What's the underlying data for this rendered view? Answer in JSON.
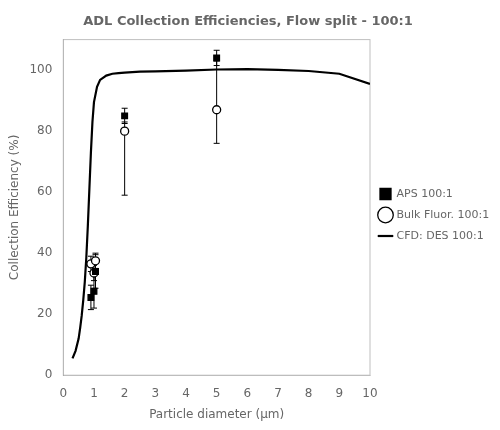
{
  "chart_data": {
    "type": "line",
    "title": "ADL Collection Efficiencies, Flow split - 100:1",
    "x_label": "Particle diameter (μm)",
    "y_label": "Collection Efficiency (%)",
    "xlim": [
      0,
      10
    ],
    "ylim": [
      0,
      110
    ],
    "xticks": [
      0,
      1,
      2,
      3,
      4,
      5,
      6,
      7,
      8,
      9,
      10
    ],
    "yticks": [
      0,
      20,
      40,
      60,
      80,
      100
    ],
    "grid": false,
    "legend": "right",
    "series": [
      {
        "name": "CFD: DES 100:1",
        "type": "line",
        "color": "#000000",
        "line_style": "solid",
        "x": [
          0.3,
          0.4,
          0.5,
          0.55,
          0.6,
          0.65,
          0.7,
          0.75,
          0.8,
          0.85,
          0.9,
          0.95,
          1.0,
          1.1,
          1.2,
          1.4,
          1.6,
          1.8,
          2.0,
          2.5,
          3.0,
          4.0,
          5.0,
          6.0,
          7.0,
          8.0,
          9.0,
          10.0
        ],
        "values": [
          5.5,
          8.0,
          12.0,
          15.5,
          19.5,
          24.5,
          30.5,
          38.5,
          49.0,
          61.0,
          73.0,
          83.0,
          89.5,
          94.5,
          96.8,
          98.2,
          98.8,
          99.0,
          99.2,
          99.5,
          99.6,
          99.8,
          100.2,
          100.3,
          100.1,
          99.7,
          98.8,
          95.5
        ]
      },
      {
        "name": "APS 100:1",
        "type": "scatter",
        "color": "#000000",
        "marker": "square",
        "x": [
          0.9,
          1.0,
          1.05,
          2.0,
          5.0
        ],
        "values": [
          25.5,
          27.5,
          34.0,
          85.0,
          104.0
        ],
        "error_low": [
          4.0,
          5.5,
          5.5,
          2.5,
          2.5
        ],
        "error_high": [
          4.0,
          5.5,
          5.5,
          2.5,
          2.5
        ]
      },
      {
        "name": "Bulk Fluor. 100:1",
        "type": "scatter",
        "color": "#000000",
        "marker": "open-circle",
        "x": [
          0.9,
          1.0,
          1.05,
          2.0,
          5.0
        ],
        "values": [
          36.5,
          33.5,
          37.5,
          80.0,
          87.0
        ],
        "error_low": [
          2.5,
          2.5,
          2.5,
          21.0,
          11.0
        ],
        "error_high": [
          2.5,
          2.5,
          2.5,
          3.0,
          16.0
        ]
      }
    ]
  }
}
